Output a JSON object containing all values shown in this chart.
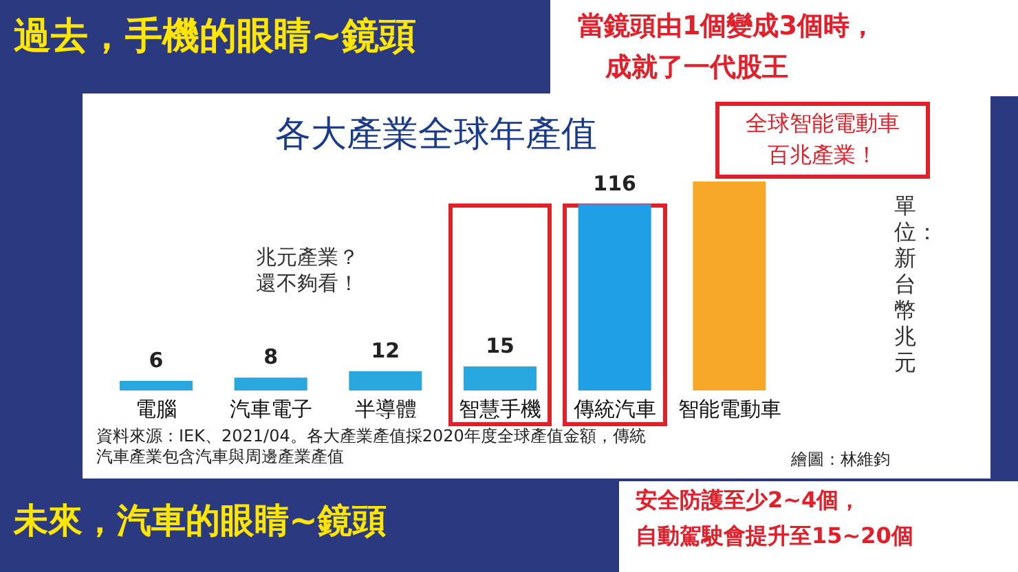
{
  "chart_data": {
    "type": "bar",
    "title": "各大產業全球年產值",
    "categories": [
      "電腦",
      "汽車電子",
      "半導體",
      "智慧手機",
      "傳統汽車",
      "智能電動車"
    ],
    "values": [
      6,
      8,
      12,
      15,
      116,
      130
    ],
    "colors": [
      "#29a8e0",
      "#29a8e0",
      "#29a8e0",
      "#29a8e0",
      "#1e9fe6",
      "#f7a828"
    ],
    "value_labels": [
      "6",
      "8",
      "12",
      "15",
      "116",
      null
    ],
    "annotations": [
      "過去，手機的眼睛~鏡頭",
      "當鏡頭由1個變成3個時，",
      "成就了一代股王",
      "兆元產業？",
      "還不夠看！",
      "全球智能電動車",
      "百兆產業！",
      "單位：新台幣兆元",
      "資料來源：IEK、2021/04。各大產業產值採2020年度全球產值金額，傳統",
      "汽車產業包含汽車與周邊產業產值",
      "繪圖：林維鈞",
      "未來，汽車的眼睛~鏡頭",
      "安全防護至少2~4個，",
      "自動駕駛會提升至15~20個"
    ]
  }
}
